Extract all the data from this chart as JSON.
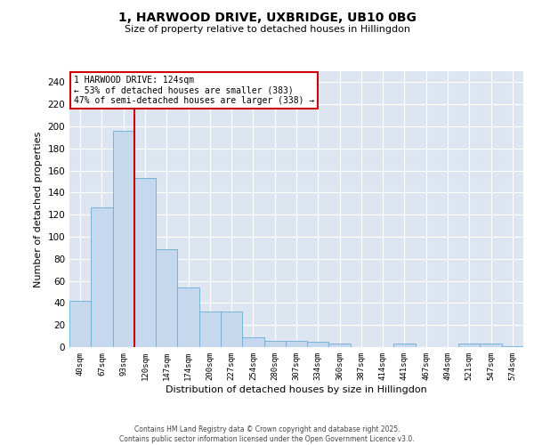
{
  "title_line1": "1, HARWOOD DRIVE, UXBRIDGE, UB10 0BG",
  "title_line2": "Size of property relative to detached houses in Hillingdon",
  "xlabel": "Distribution of detached houses by size in Hillingdon",
  "ylabel": "Number of detached properties",
  "categories": [
    "40sqm",
    "67sqm",
    "93sqm",
    "120sqm",
    "147sqm",
    "174sqm",
    "200sqm",
    "227sqm",
    "254sqm",
    "280sqm",
    "307sqm",
    "334sqm",
    "360sqm",
    "387sqm",
    "414sqm",
    "441sqm",
    "467sqm",
    "494sqm",
    "521sqm",
    "547sqm",
    "574sqm"
  ],
  "values": [
    42,
    127,
    196,
    153,
    89,
    54,
    32,
    32,
    9,
    6,
    6,
    5,
    3,
    0,
    0,
    3,
    0,
    0,
    3,
    3,
    1
  ],
  "bar_color": "#c5d8ee",
  "bar_edge_color": "#6aaed6",
  "vline_color": "#cc0000",
  "annotation_text": "1 HARWOOD DRIVE: 124sqm\n← 53% of detached houses are smaller (383)\n47% of semi-detached houses are larger (338) →",
  "annotation_box_color": "#cc0000",
  "background_color": "#dde6f0",
  "ylim": [
    0,
    250
  ],
  "yticks": [
    0,
    20,
    40,
    60,
    80,
    100,
    120,
    140,
    160,
    180,
    200,
    220,
    240
  ],
  "footer_line1": "Contains HM Land Registry data © Crown copyright and database right 2025.",
  "footer_line2": "Contains public sector information licensed under the Open Government Licence v3.0."
}
